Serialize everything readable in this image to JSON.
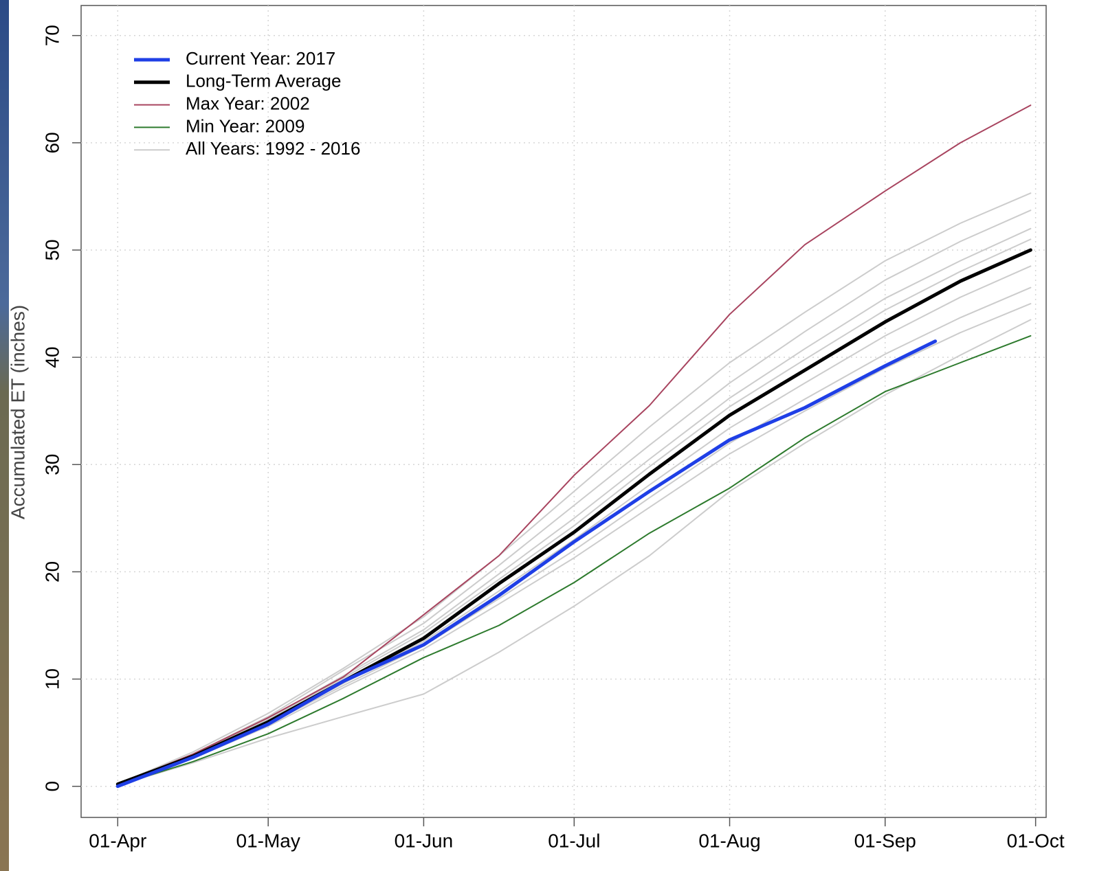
{
  "chart_data": {
    "type": "line",
    "y_label": "Accumulated ET (inches)",
    "x": [
      0,
      15,
      30,
      45,
      61,
      76,
      91,
      106,
      122,
      137,
      153,
      168,
      182
    ],
    "xlim": [
      -7.3,
      185.1
    ],
    "xticks": [
      {
        "value": 0,
        "label": "01-Apr"
      },
      {
        "value": 30,
        "label": "01-May"
      },
      {
        "value": 61,
        "label": "01-Jun"
      },
      {
        "value": 91,
        "label": "01-Jul"
      },
      {
        "value": 122,
        "label": "01-Aug"
      },
      {
        "value": 153,
        "label": "01-Sep"
      },
      {
        "value": 183,
        "label": "01-Oct"
      }
    ],
    "ylim": [
      -2.9,
      72.8
    ],
    "yticks": [
      0,
      10,
      20,
      30,
      40,
      50,
      60,
      70
    ],
    "grid": true,
    "legend": "top-left",
    "series": [
      {
        "name": "Current Year: 2017",
        "color": "#1f3fe6",
        "linewidth": 5,
        "x": [
          0,
          15,
          30,
          45,
          61,
          76,
          91,
          106,
          122,
          137,
          153,
          163
        ],
        "values": [
          0,
          2.7,
          5.8,
          9.8,
          13.2,
          17.8,
          22.8,
          27.5,
          32.3,
          35.3,
          39.2,
          41.5
        ]
      },
      {
        "name": "Long-Term Average",
        "color": "#000000",
        "linewidth": 5,
        "values": [
          0.2,
          2.8,
          6,
          9.8,
          13.8,
          18.9,
          23.7,
          29.1,
          34.6,
          38.8,
          43.3,
          47.1,
          50
        ]
      },
      {
        "name": "Max Year: 2002",
        "color": "#a8445f",
        "linewidth": 2,
        "values": [
          0.2,
          3,
          6.4,
          10.2,
          16,
          21.5,
          29,
          35.5,
          44,
          50.5,
          55.5,
          60,
          63.5
        ]
      },
      {
        "name": "Min Year: 2009",
        "color": "#2d7a2d",
        "linewidth": 2,
        "values": [
          0.1,
          2.3,
          4.9,
          8.2,
          12,
          15,
          19,
          23.6,
          27.8,
          32.5,
          36.8,
          39.5,
          42
        ]
      }
    ],
    "all_years": {
      "name": "All Years: 1992 - 2016",
      "color": "#cccccc",
      "linewidth": 2,
      "lines": [
        [
          0.2,
          3.2,
          6.8,
          11,
          15.8,
          21.5,
          27.5,
          33.5,
          39.5,
          44.2,
          49,
          52.5,
          55.3
        ],
        [
          0.2,
          3,
          6.5,
          10.8,
          15.2,
          20.6,
          26.2,
          31.8,
          37.6,
          42.4,
          47.2,
          50.8,
          53.7
        ],
        [
          0.2,
          3,
          6.3,
          10.3,
          14.6,
          19.8,
          25,
          30.5,
          36.2,
          40.8,
          45.5,
          49,
          52
        ],
        [
          0.2,
          2.9,
          6.2,
          10.1,
          14.3,
          19.3,
          24.3,
          29.8,
          35.4,
          39.8,
          44.4,
          48,
          51
        ],
        [
          0.2,
          2.8,
          5.9,
          9.6,
          13.5,
          18.2,
          23,
          28.1,
          33.4,
          37.6,
          42,
          45.6,
          48.5
        ],
        [
          0.2,
          2.7,
          5.8,
          9.4,
          13.1,
          17.5,
          22,
          26.9,
          32,
          36.1,
          40.3,
          43.7,
          46.5
        ],
        [
          0.2,
          2.6,
          5.6,
          9.2,
          12.8,
          17,
          21.3,
          26,
          31,
          35,
          39,
          42.3,
          45
        ],
        [
          0.1,
          2.2,
          4.5,
          6.5,
          8.6,
          12.5,
          16.8,
          21.5,
          27.5,
          32,
          36.5,
          40.2,
          43.5
        ]
      ]
    }
  }
}
